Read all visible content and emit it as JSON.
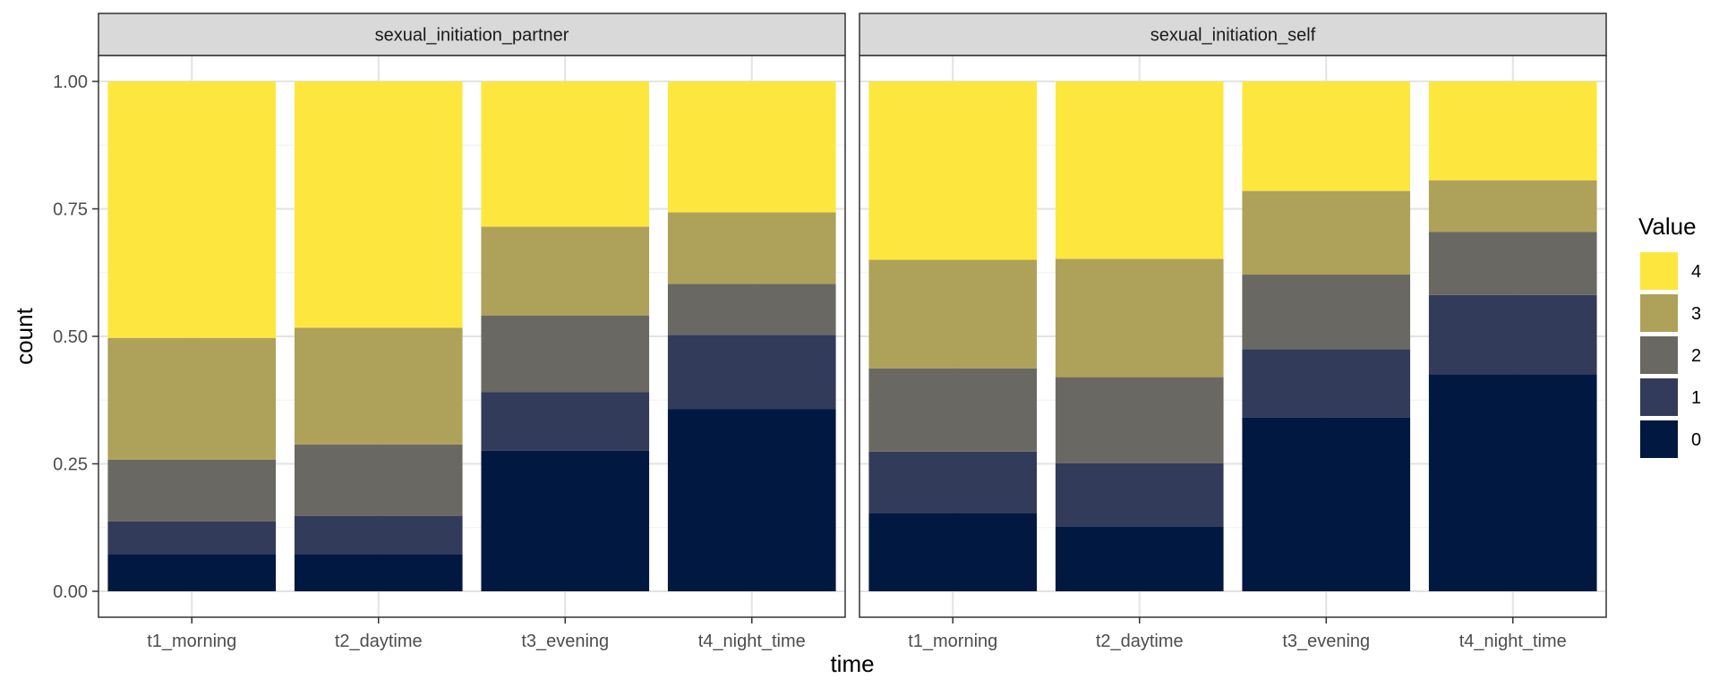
{
  "chart_data": {
    "type": "bar",
    "stacked": true,
    "normalized": true,
    "xlabel": "time",
    "ylabel": "count",
    "ylim": [
      0,
      1
    ],
    "y_ticks": [
      "0.00",
      "0.25",
      "0.50",
      "0.75",
      "1.00"
    ],
    "y_tick_values": [
      0,
      0.25,
      0.5,
      0.75,
      1
    ],
    "grid": true,
    "legend": {
      "title": "Value",
      "position": "right",
      "items": [
        {
          "label": "4",
          "color": "#FDE73F"
        },
        {
          "label": "3",
          "color": "#AEA15A"
        },
        {
          "label": "2",
          "color": "#696862"
        },
        {
          "label": "1",
          "color": "#323B59"
        },
        {
          "label": "0",
          "color": "#011840"
        }
      ]
    },
    "panels": [
      {
        "title": "sexual_initiation_partner",
        "categories": [
          "t1_morning",
          "t2_daytime",
          "t3_evening",
          "t4_night_time"
        ],
        "series": [
          {
            "name": "0",
            "values": [
              0.073,
              0.073,
              0.276,
              0.357
            ]
          },
          {
            "name": "1",
            "values": [
              0.064,
              0.075,
              0.115,
              0.146
            ]
          },
          {
            "name": "2",
            "values": [
              0.121,
              0.14,
              0.15,
              0.1
            ]
          },
          {
            "name": "3",
            "values": [
              0.239,
              0.229,
              0.174,
              0.14
            ]
          },
          {
            "name": "4",
            "values": [
              0.503,
              0.483,
              0.285,
              0.257
            ]
          }
        ]
      },
      {
        "title": "sexual_initiation_self",
        "categories": [
          "t1_morning",
          "t2_daytime",
          "t3_evening",
          "t4_night_time"
        ],
        "series": [
          {
            "name": "0",
            "values": [
              0.154,
              0.127,
              0.341,
              0.426
            ]
          },
          {
            "name": "1",
            "values": [
              0.12,
              0.124,
              0.134,
              0.155
            ]
          },
          {
            "name": "2",
            "values": [
              0.163,
              0.169,
              0.146,
              0.124
            ]
          },
          {
            "name": "3",
            "values": [
              0.213,
              0.232,
              0.164,
              0.101
            ]
          },
          {
            "name": "4",
            "values": [
              0.35,
              0.348,
              0.215,
              0.194
            ]
          }
        ]
      }
    ]
  }
}
